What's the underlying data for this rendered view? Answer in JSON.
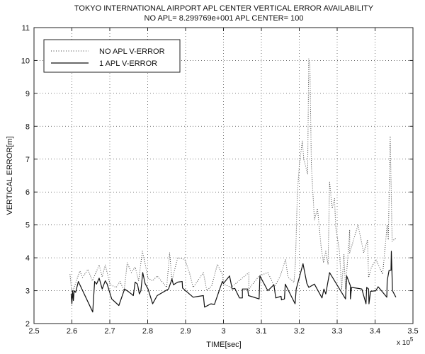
{
  "chart_data": {
    "type": "line",
    "title": "TOKYO INTERNATIONAL AIRPORT APL CENTER  VERTICAL ERROR AVAILABILITY",
    "subtitle": "NO APL= 8.299769e+001  APL CENTER= 100",
    "xlabel": "TIME[sec]",
    "ylabel": "VERTICAL ERROR[m]",
    "x_exponent_label": "x 10",
    "x_exponent_power": "5",
    "xlim": [
      2.5,
      3.5
    ],
    "ylim": [
      2,
      11
    ],
    "xticks": [
      "2.5",
      "2.6",
      "2.7",
      "2.8",
      "2.9",
      "3",
      "3.1",
      "3.2",
      "3.3",
      "3.4",
      "3.5"
    ],
    "yticks": [
      "2",
      "3",
      "4",
      "5",
      "6",
      "7",
      "8",
      "9",
      "10",
      "11"
    ],
    "grid": true,
    "legend_position": "top-left",
    "series": [
      {
        "name": "NO APL V-ERROR",
        "style": "dotted",
        "x": [
          2.595,
          2.6,
          2.621,
          2.628,
          2.642,
          2.654,
          2.672,
          2.68,
          2.688,
          2.701,
          2.717,
          2.727,
          2.738,
          2.746,
          2.757,
          2.767,
          2.776,
          2.786,
          2.795,
          2.801,
          2.813,
          2.825,
          2.85,
          2.858,
          2.864,
          2.879,
          2.898,
          2.91,
          2.92,
          2.947,
          2.956,
          2.969,
          2.984,
          2.997,
          3.0,
          3.02,
          3.067,
          3.067,
          3.094,
          3.117,
          3.135,
          3.15,
          3.164,
          3.17,
          3.186,
          3.19,
          3.195,
          3.2,
          3.208,
          3.212,
          3.222,
          3.225,
          3.228,
          3.232,
          3.24,
          3.248,
          3.258,
          3.264,
          3.27,
          3.276,
          3.28,
          3.287,
          3.293,
          3.296,
          3.306,
          3.312,
          3.318,
          3.322,
          3.333,
          3.333,
          3.355,
          3.37,
          3.38,
          3.383,
          3.39,
          3.402,
          3.42,
          3.432,
          3.435,
          3.44,
          3.445,
          3.455
        ],
        "y": [
          3.5,
          2.9,
          3.6,
          3.4,
          3.65,
          3.3,
          3.78,
          3.42,
          3.78,
          3.18,
          3.1,
          3.28,
          3.0,
          3.85,
          3.55,
          3.72,
          3.3,
          4.2,
          3.72,
          3.38,
          3.3,
          3.45,
          3.1,
          4.15,
          3.3,
          4.0,
          3.95,
          3.55,
          3.1,
          3.55,
          3.0,
          3.15,
          3.8,
          3.5,
          3.2,
          3.1,
          3.55,
          3.05,
          3.45,
          3.55,
          3.12,
          3.45,
          3.95,
          3.42,
          3.25,
          3.85,
          5.95,
          6.8,
          7.55,
          7.0,
          6.55,
          10.05,
          9.85,
          6.8,
          5.15,
          5.5,
          4.3,
          3.85,
          4.2,
          3.8,
          6.3,
          5.5,
          5.8,
          4.95,
          4.2,
          3.05,
          4.1,
          3.05,
          4.85,
          4.15,
          5.0,
          4.15,
          4.55,
          3.4,
          3.7,
          3.95,
          3.5,
          5.0,
          4.55,
          7.7,
          4.5,
          4.6
        ]
      },
      {
        "name": "1 APL V-ERROR",
        "style": "solid",
        "x": [
          2.598,
          2.6,
          2.602,
          2.604,
          2.606,
          2.61,
          2.617,
          2.655,
          2.66,
          2.665,
          2.672,
          2.68,
          2.688,
          2.693,
          2.705,
          2.724,
          2.739,
          2.748,
          2.757,
          2.762,
          2.767,
          2.773,
          2.778,
          2.782,
          2.787,
          2.793,
          2.801,
          2.813,
          2.825,
          2.855,
          2.864,
          2.868,
          2.879,
          2.891,
          2.892,
          2.92,
          2.93,
          2.947,
          2.95,
          2.967,
          2.976,
          2.997,
          3.0,
          3.016,
          3.023,
          3.03,
          3.042,
          3.05,
          3.05,
          3.064,
          3.066,
          3.094,
          3.096,
          3.117,
          3.133,
          3.138,
          3.152,
          3.153,
          3.161,
          3.163,
          3.189,
          3.192,
          3.21,
          3.22,
          3.225,
          3.24,
          3.26,
          3.265,
          3.27,
          3.28,
          3.322,
          3.325,
          3.335,
          3.335,
          3.338,
          3.365,
          3.376,
          3.378,
          3.383,
          3.384,
          3.388,
          3.402,
          3.408,
          3.431,
          3.432,
          3.437,
          3.442,
          3.443,
          3.446,
          3.455
        ],
        "y": [
          2.9,
          2.6,
          3.0,
          2.7,
          3.0,
          2.95,
          3.28,
          2.35,
          3.28,
          3.2,
          3.38,
          3.05,
          3.3,
          3.2,
          2.75,
          2.55,
          3.05,
          2.98,
          2.9,
          2.85,
          3.26,
          3.2,
          2.9,
          3.0,
          3.55,
          3.22,
          3.05,
          2.6,
          2.85,
          3.05,
          3.35,
          3.18,
          3.26,
          3.28,
          3.08,
          2.8,
          2.82,
          2.85,
          2.5,
          2.6,
          2.58,
          3.28,
          3.22,
          3.45,
          3.05,
          3.07,
          2.78,
          2.78,
          3.05,
          3.05,
          2.85,
          2.75,
          3.45,
          3.0,
          3.18,
          2.78,
          2.83,
          2.72,
          2.75,
          3.2,
          2.6,
          3.05,
          3.82,
          3.22,
          3.1,
          3.2,
          2.78,
          3.05,
          2.9,
          3.55,
          2.75,
          3.45,
          3.15,
          2.75,
          3.1,
          3.05,
          2.6,
          3.1,
          3.05,
          2.6,
          2.98,
          3.0,
          3.12,
          2.8,
          3.3,
          3.62,
          3.62,
          4.2,
          3.0,
          2.8
        ]
      }
    ]
  }
}
